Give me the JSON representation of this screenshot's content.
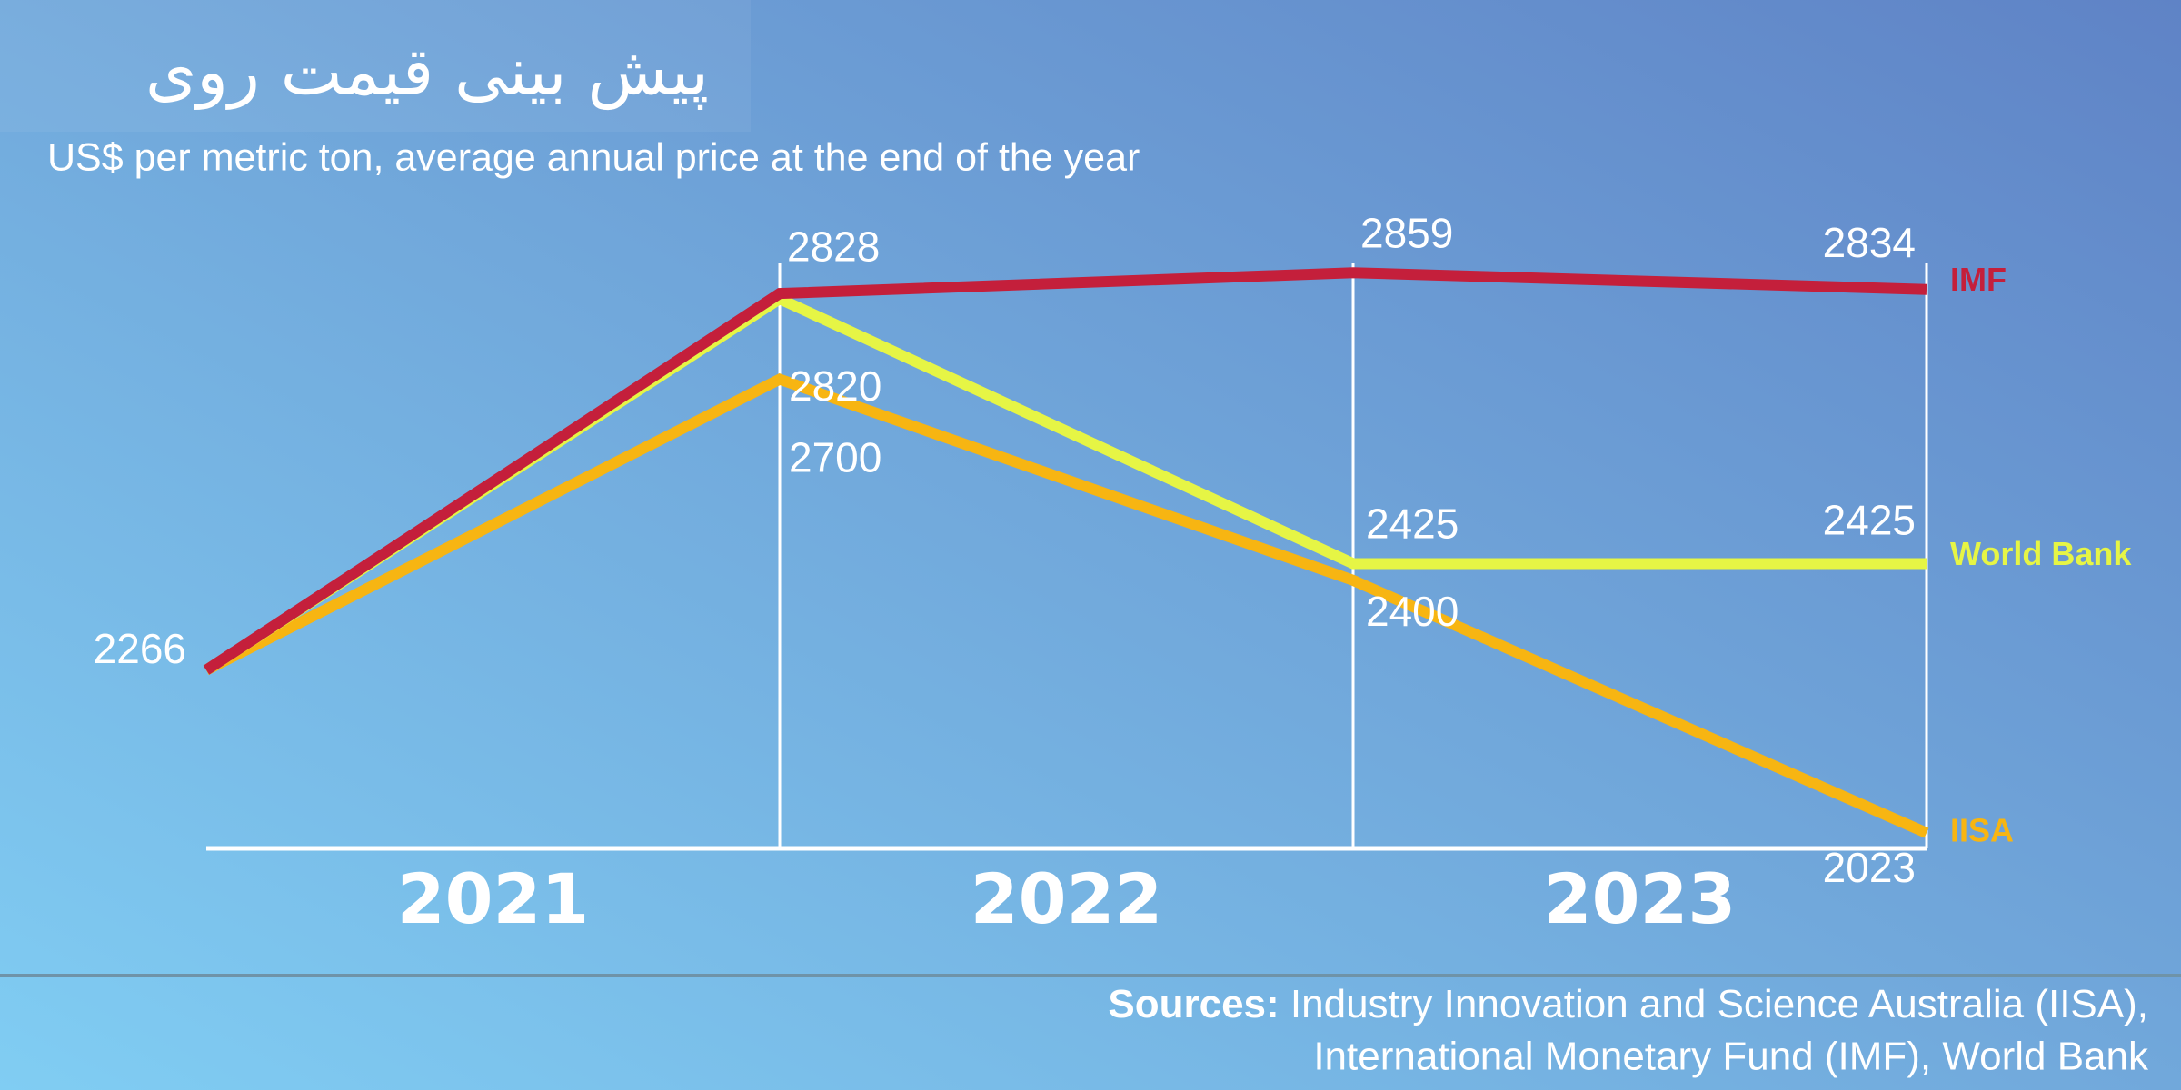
{
  "chart_data": {
    "type": "line",
    "title": "پیش بینی قیمت روی",
    "subtitle": "US$ per metric ton, average annual price at the end of the year",
    "categories": [
      null,
      "2021",
      "2022",
      "2023"
    ],
    "series": [
      {
        "name": "IMF",
        "color": "#c41f3b",
        "values": [
          2266,
          2828,
          2859,
          2834
        ]
      },
      {
        "name": "World Bank",
        "color": "#e6f545",
        "values": [
          2266,
          2820,
          2425,
          2425
        ]
      },
      {
        "name": "IISA",
        "color": "#f7b512",
        "values": [
          2266,
          2700,
          2400,
          2023
        ]
      }
    ],
    "ylim": [
      2000,
      2900
    ],
    "source_label": "Sources:",
    "source": [
      "Industry Innovation and Science Australia (IISA),",
      "International Monetary Fund (IMF), World Bank"
    ]
  }
}
